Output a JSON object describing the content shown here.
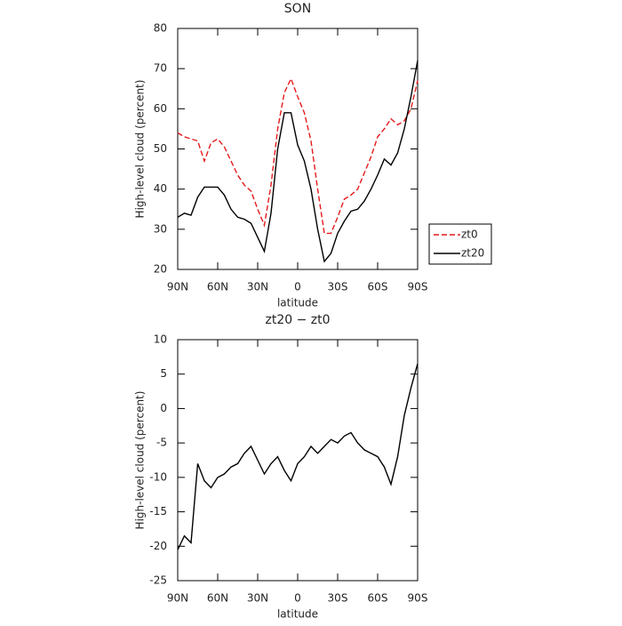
{
  "chart_data": [
    {
      "type": "line",
      "title": "SON",
      "x_label": "latitude",
      "y_label": "High-level cloud (percent)",
      "x": [
        90,
        85,
        80,
        75,
        70,
        65,
        60,
        55,
        50,
        45,
        40,
        35,
        30,
        25,
        20,
        15,
        10,
        5,
        0,
        -5,
        -10,
        -15,
        -20,
        -25,
        -30,
        -35,
        -40,
        -45,
        -50,
        -55,
        -60,
        -65,
        -70,
        -75,
        -80,
        -85,
        -90
      ],
      "series": [
        {
          "name": "zt0",
          "color": "#e41a1c",
          "dash": true,
          "values": [
            54,
            53,
            52.5,
            52,
            47,
            51.5,
            52.5,
            50.5,
            47,
            43.5,
            41,
            39.5,
            35,
            31,
            41,
            55,
            64,
            67.5,
            63,
            59,
            52,
            40,
            29,
            29,
            33,
            37.5,
            38.5,
            40,
            44,
            48,
            53,
            55,
            57.5,
            56,
            57,
            60,
            67
          ]
        },
        {
          "name": "zt20",
          "color": "#000000",
          "dash": false,
          "values": [
            33,
            34,
            33.5,
            38,
            40.5,
            40.5,
            40.5,
            38.5,
            35,
            33,
            32.5,
            31.5,
            28,
            24.5,
            34,
            50,
            59,
            59,
            51,
            47,
            40,
            30,
            22,
            24,
            29,
            32,
            34.5,
            35,
            37,
            40,
            43.5,
            47.5,
            46,
            49,
            55,
            63,
            72
          ]
        }
      ],
      "xlim": [
        90,
        -90
      ],
      "xticks": [
        {
          "value": 90,
          "label": "90N"
        },
        {
          "value": 60,
          "label": "60N"
        },
        {
          "value": 30,
          "label": "30N"
        },
        0,
        {
          "value": -30,
          "label": "30S"
        },
        {
          "value": -60,
          "label": "60S"
        },
        {
          "value": -90,
          "label": "90S"
        }
      ],
      "ylim": [
        20,
        80
      ],
      "yticks": [
        20,
        30,
        40,
        50,
        60,
        70,
        80
      ],
      "legend": "right"
    },
    {
      "type": "line",
      "title": "zt20 − zt0",
      "x_label": "latitude",
      "y_label": "High-level cloud (percent)",
      "x": [
        90,
        85,
        80,
        75,
        70,
        65,
        60,
        55,
        50,
        45,
        40,
        35,
        30,
        25,
        20,
        15,
        10,
        5,
        0,
        -5,
        -10,
        -15,
        -20,
        -25,
        -30,
        -35,
        -40,
        -45,
        -50,
        -55,
        -60,
        -65,
        -70,
        -75,
        -80,
        -85,
        -90
      ],
      "series": [
        {
          "color": "#000000",
          "dash": false,
          "values": [
            -20.5,
            -18.5,
            -19.5,
            -8,
            -10.5,
            -11.5,
            -10,
            -9.5,
            -8.5,
            -8,
            -6.5,
            -5.5,
            -7.5,
            -9.5,
            -8,
            -7,
            -9,
            -10.5,
            -8,
            -7,
            -5.5,
            -6.5,
            -5.5,
            -4.5,
            -5,
            -4,
            -3.5,
            -5,
            -6,
            -6.5,
            -7,
            -8.5,
            -11,
            -7,
            -1,
            3,
            6.5
          ]
        }
      ],
      "xlim": [
        90,
        -90
      ],
      "xticks": [
        {
          "value": 90,
          "label": "90N"
        },
        {
          "value": 60,
          "label": "60N"
        },
        {
          "value": 30,
          "label": "30N"
        },
        0,
        {
          "value": -30,
          "label": "30S"
        },
        {
          "value": -60,
          "label": "60S"
        },
        {
          "value": -90,
          "label": "90S"
        }
      ],
      "ylim": [
        -25,
        10
      ],
      "yticks": [
        -25,
        -20,
        -15,
        -10,
        -5,
        0,
        5,
        10
      ]
    }
  ]
}
